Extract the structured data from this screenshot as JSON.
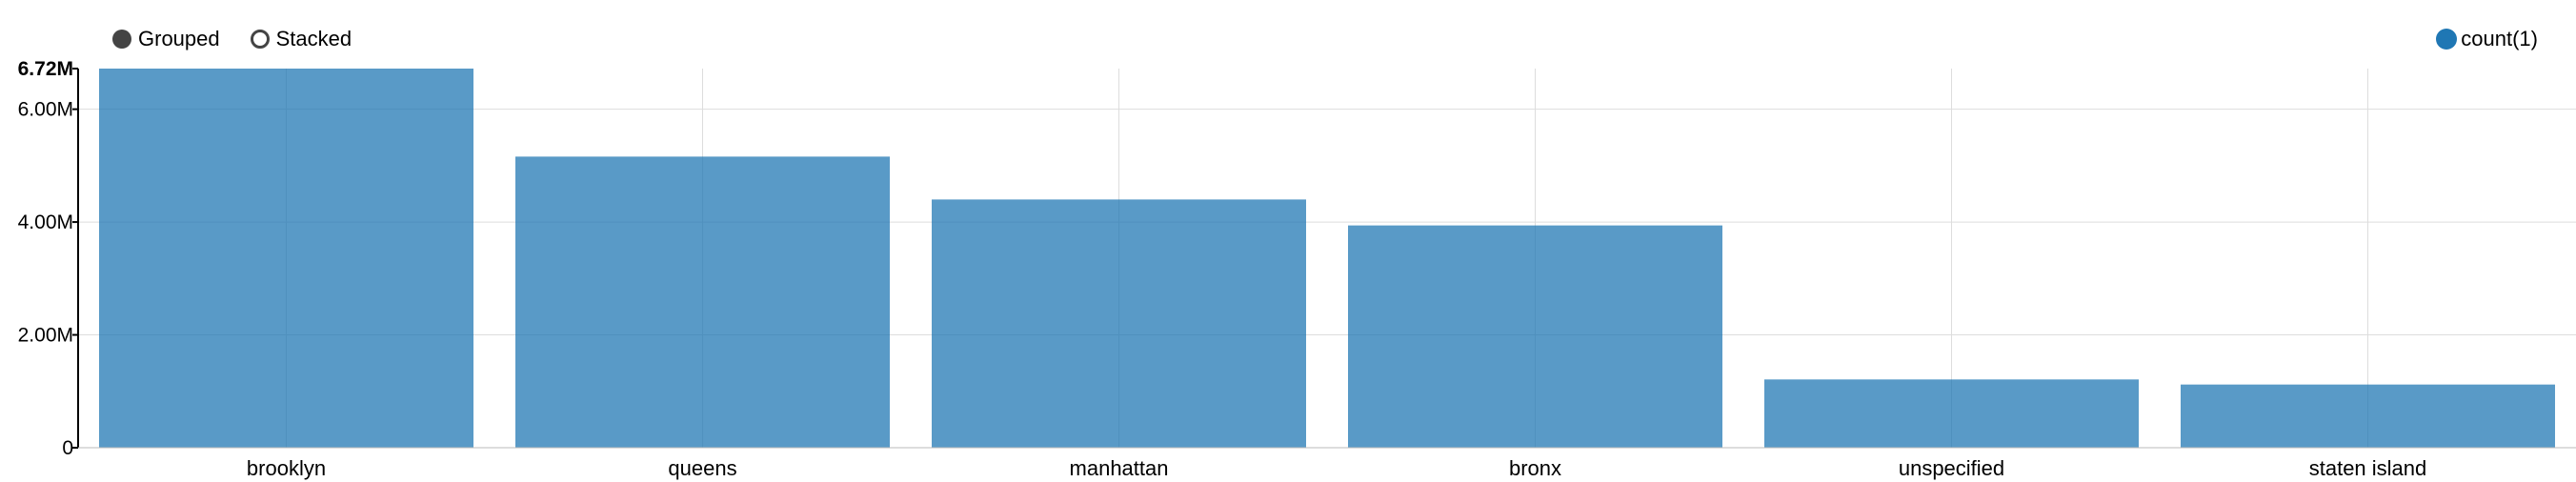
{
  "controls": {
    "grouped_label": "Grouped",
    "stacked_label": "Stacked",
    "selected": "Grouped"
  },
  "legend": {
    "label": "count(1)",
    "color": "#1f77b4"
  },
  "colors": {
    "bar": "#1f77b4",
    "radio": "#444444",
    "grid": "#dddddd",
    "axis": "#000000"
  },
  "chart_data": {
    "type": "bar",
    "categories": [
      "brooklyn",
      "queens",
      "manhattan",
      "bronx",
      "unspecified",
      "staten island"
    ],
    "series": [
      {
        "name": "count(1)",
        "values": [
          6720000,
          5160000,
          4400000,
          3940000,
          1210000,
          1120000
        ]
      }
    ],
    "ylim": [
      0,
      6720000
    ],
    "yticks": [
      {
        "value": 0,
        "label": "0"
      },
      {
        "value": 2000000,
        "label": "2.00M"
      },
      {
        "value": 4000000,
        "label": "4.00M"
      },
      {
        "value": 6000000,
        "label": "6.00M"
      },
      {
        "value": 6720000,
        "label": "6.72M"
      }
    ],
    "grid": true,
    "legend_position": "top-right",
    "xlabel": "",
    "ylabel": ""
  }
}
